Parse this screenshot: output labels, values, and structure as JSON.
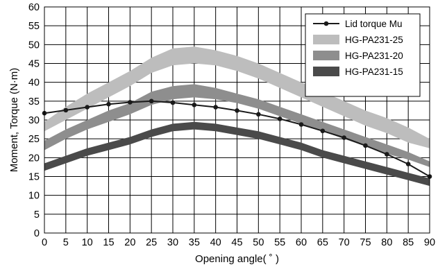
{
  "chart_data": {
    "type": "line",
    "title": "",
    "xlabel": "Opening angle( ˚ )",
    "ylabel": "Moment, Torque (N·m)",
    "xlim": [
      0,
      90
    ],
    "ylim": [
      0,
      60
    ],
    "xticks": [
      "0",
      "5",
      "10",
      "15",
      "20",
      "25",
      "30",
      "35",
      "40",
      "45",
      "50",
      "55",
      "60",
      "65",
      "70",
      "75",
      "80",
      "85",
      "90"
    ],
    "yticks": [
      "0",
      "5",
      "10",
      "15",
      "20",
      "25",
      "30",
      "35",
      "40",
      "45",
      "50",
      "55",
      "60"
    ],
    "grid": true,
    "legend_placement": "top-right",
    "x": [
      0,
      5,
      10,
      15,
      20,
      25,
      30,
      35,
      40,
      45,
      50,
      55,
      60,
      65,
      70,
      75,
      80,
      85,
      90
    ],
    "series": [
      {
        "name": "Lid torque Mu",
        "kind": "line-markers",
        "color": "#1a1a1a",
        "values": [
          31.8,
          32.6,
          33.4,
          34.2,
          34.7,
          35.0,
          34.6,
          34.0,
          33.4,
          32.5,
          31.5,
          30.3,
          28.8,
          27.1,
          25.3,
          23.2,
          20.9,
          18.3,
          15.0
        ]
      },
      {
        "name": "HG-PA231-25",
        "kind": "band",
        "color": "#bdbdbd",
        "upper": [
          29.5,
          33.5,
          37.0,
          40.0,
          43.0,
          46.5,
          49.0,
          49.5,
          48.5,
          47.0,
          45.0,
          42.5,
          40.0,
          37.5,
          35.0,
          32.5,
          30.5,
          28.0,
          25.0
        ],
        "lower": [
          27.0,
          30.0,
          33.0,
          36.0,
          39.0,
          42.5,
          44.5,
          45.0,
          44.5,
          43.0,
          41.0,
          38.5,
          36.0,
          33.5,
          31.0,
          28.5,
          26.5,
          24.0,
          22.5
        ]
      },
      {
        "name": "HG-PA231-20",
        "kind": "band",
        "color": "#8e8e8e",
        "upper": [
          24.5,
          27.5,
          30.0,
          32.5,
          34.5,
          37.5,
          39.0,
          39.5,
          38.5,
          37.0,
          35.5,
          33.5,
          31.5,
          29.5,
          27.5,
          25.5,
          23.5,
          21.5,
          19.0
        ],
        "lower": [
          22.0,
          25.0,
          27.5,
          29.5,
          31.5,
          34.0,
          35.5,
          36.0,
          35.5,
          34.5,
          33.0,
          31.0,
          29.0,
          27.0,
          25.0,
          23.0,
          21.0,
          19.5,
          17.5
        ]
      },
      {
        "name": "HG-PA231-15",
        "kind": "band",
        "color": "#4a4a4a",
        "upper": [
          18.5,
          20.5,
          22.5,
          24.0,
          25.5,
          27.5,
          29.0,
          29.5,
          29.0,
          28.0,
          27.0,
          25.5,
          24.0,
          22.0,
          20.5,
          19.0,
          17.5,
          16.0,
          14.5
        ],
        "lower": [
          16.5,
          18.5,
          20.5,
          22.0,
          23.5,
          25.5,
          27.0,
          27.5,
          27.0,
          26.0,
          25.0,
          23.5,
          22.0,
          20.0,
          18.5,
          17.0,
          15.5,
          14.0,
          12.5
        ]
      }
    ]
  }
}
